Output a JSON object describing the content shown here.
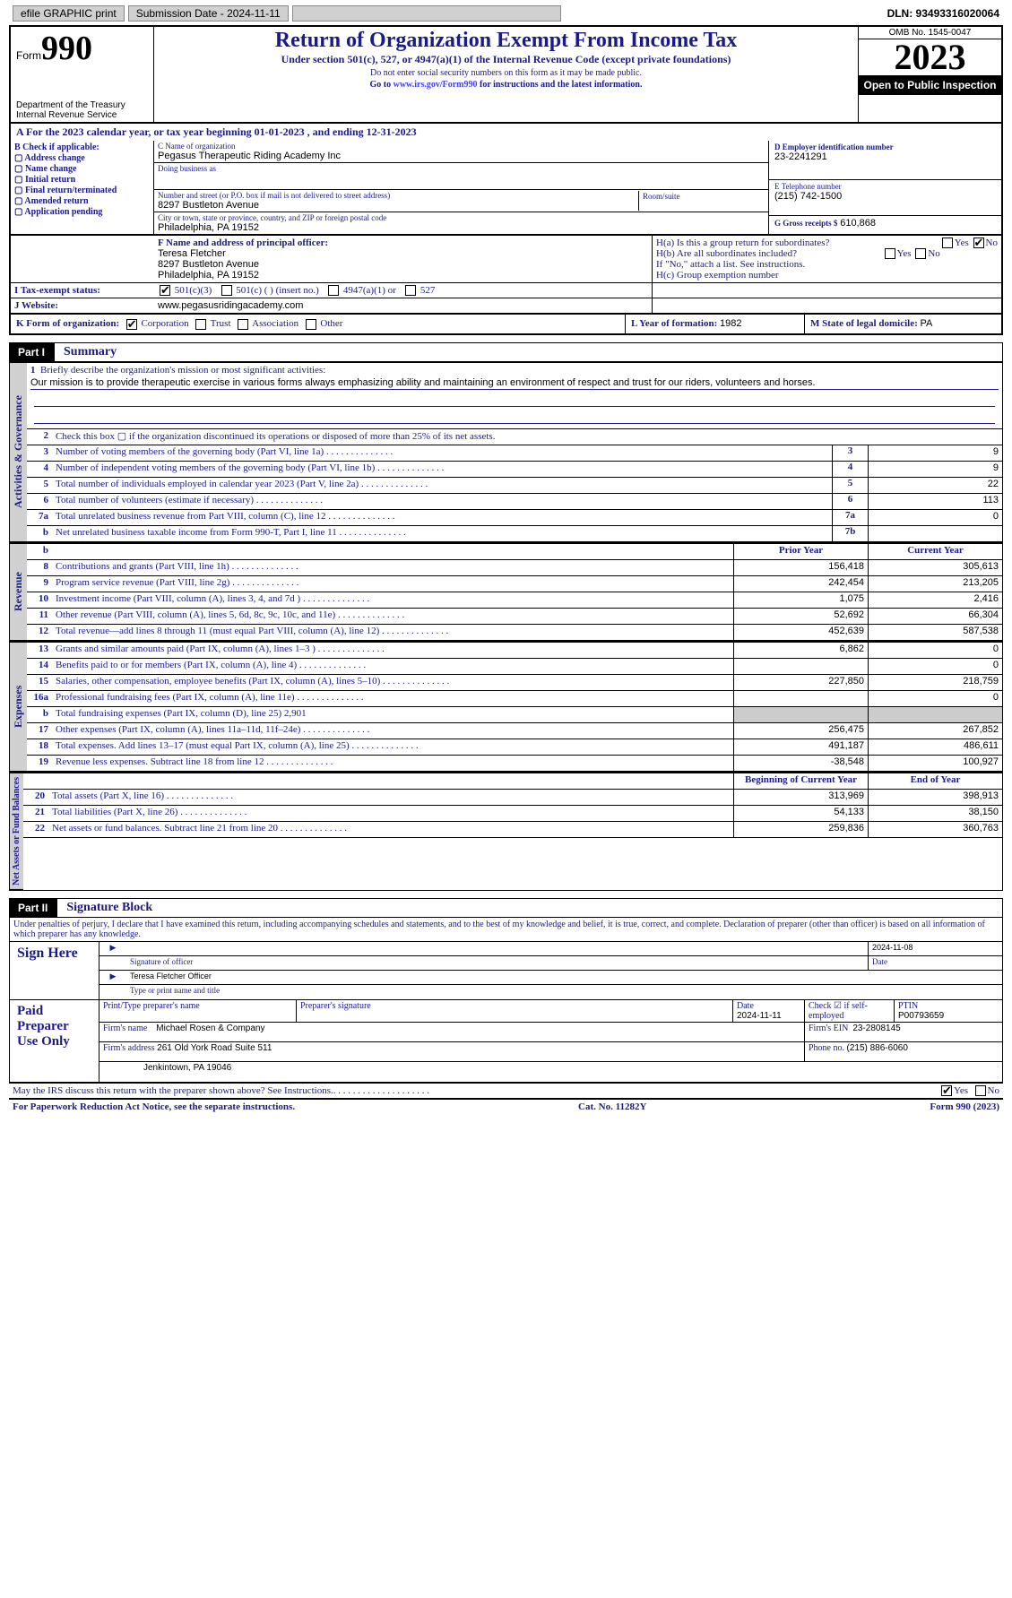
{
  "top_bar": {
    "efile": "efile GRAPHIC print",
    "submission": "Submission Date - 2024-11-11",
    "dln": "DLN: 93493316020064"
  },
  "header": {
    "form_label": "Form",
    "form_num": "990",
    "dept": "Department of the Treasury",
    "irs": "Internal Revenue Service",
    "title": "Return of Organization Exempt From Income Tax",
    "sub": "Under section 501(c), 527, or 4947(a)(1) of the Internal Revenue Code (except private foundations)",
    "ssn": "Do not enter social security numbers on this form as it may be made public.",
    "goto": "Go to www.irs.gov/Form990 for instructions and the latest information.",
    "goto_link": "www.irs.gov/Form990",
    "omb": "OMB No. 1545-0047",
    "year": "2023",
    "inspection": "Open to Public Inspection"
  },
  "row_a": "A For the 2023 calendar year, or tax year beginning 01-01-2023    , and ending 12-31-2023",
  "box_b": {
    "label": "B Check if applicable:",
    "items": [
      "Address change",
      "Name change",
      "Initial return",
      "Final return/terminated",
      "Amended return",
      "Application pending"
    ]
  },
  "box_c": {
    "name_lbl": "C Name of organization",
    "name": "Pegasus Therapeutic Riding Academy Inc",
    "dba_lbl": "Doing business as",
    "street_lbl": "Number and street (or P.O. box if mail is not delivered to street address)",
    "street": "8297 Bustleton Avenue",
    "room_lbl": "Room/suite",
    "city_lbl": "City or town, state or province, country, and ZIP or foreign postal code",
    "city": "Philadelphia, PA  19152"
  },
  "box_d": {
    "ein_lbl": "D Employer identification number",
    "ein": "23-2241291",
    "phone_lbl": "E Telephone number",
    "phone": "(215) 742-1500",
    "gross_lbl": "G Gross receipts $",
    "gross": "610,868"
  },
  "box_f": {
    "lbl": "F Name and address of principal officer:",
    "name": "Teresa Fletcher",
    "addr1": "8297 Bustleton Avenue",
    "addr2": "Philadelphia, PA  19152"
  },
  "box_h": {
    "ha": "H(a)  Is this a group return for subordinates?",
    "hb": "H(b)  Are all subordinates included?",
    "hb_note": "If \"No,\" attach a list. See instructions.",
    "hc": "H(c)  Group exemption number"
  },
  "tax_status": {
    "lbl": "I  Tax-exempt status:",
    "opts": [
      "501(c)(3)",
      "501(c) (  ) (insert no.)",
      "4947(a)(1) or",
      "527"
    ]
  },
  "website": {
    "lbl": "J  Website:",
    "val": "www.pegasusridingacademy.com"
  },
  "k_form": {
    "lbl": "K Form of organization:",
    "opts": [
      "Corporation",
      "Trust",
      "Association",
      "Other"
    ],
    "year_lbl": "L Year of formation:",
    "year": "1982",
    "state_lbl": "M State of legal domicile:",
    "state": "PA"
  },
  "part1": {
    "num": "Part I",
    "title": "Summary"
  },
  "governance": {
    "vtab": "Activities & Governance",
    "line1_lbl": "Briefly describe the organization's mission or most significant activities:",
    "line1": "Our mission is to provide therapeutic exercise in various forms always emphasizing ability and maintaining an environment of respect and trust for our riders, volunteers and horses.",
    "line2": "Check this box  ▢  if the organization discontinued its operations or disposed of more than 25% of its net assets.",
    "rows": [
      {
        "n": "3",
        "d": "Number of voting members of the governing body (Part VI, line 1a)",
        "b": "3",
        "v": "9"
      },
      {
        "n": "4",
        "d": "Number of independent voting members of the governing body (Part VI, line 1b)",
        "b": "4",
        "v": "9"
      },
      {
        "n": "5",
        "d": "Total number of individuals employed in calendar year 2023 (Part V, line 2a)",
        "b": "5",
        "v": "22"
      },
      {
        "n": "6",
        "d": "Total number of volunteers (estimate if necessary)",
        "b": "6",
        "v": "113"
      },
      {
        "n": "7a",
        "d": "Total unrelated business revenue from Part VIII, column (C), line 12",
        "b": "7a",
        "v": "0"
      },
      {
        "n": "b",
        "d": "Net unrelated business taxable income from Form 990-T, Part I, line 11",
        "b": "7b",
        "v": ""
      }
    ]
  },
  "revenue": {
    "vtab": "Revenue",
    "h_prior": "Prior Year",
    "h_curr": "Current Year",
    "rows": [
      {
        "n": "8",
        "d": "Contributions and grants (Part VIII, line 1h)",
        "p": "156,418",
        "c": "305,613"
      },
      {
        "n": "9",
        "d": "Program service revenue (Part VIII, line 2g)",
        "p": "242,454",
        "c": "213,205"
      },
      {
        "n": "10",
        "d": "Investment income (Part VIII, column (A), lines 3, 4, and 7d )",
        "p": "1,075",
        "c": "2,416"
      },
      {
        "n": "11",
        "d": "Other revenue (Part VIII, column (A), lines 5, 6d, 8c, 9c, 10c, and 11e)",
        "p": "52,692",
        "c": "66,304"
      },
      {
        "n": "12",
        "d": "Total revenue—add lines 8 through 11 (must equal Part VIII, column (A), line 12)",
        "p": "452,639",
        "c": "587,538"
      }
    ]
  },
  "expenses": {
    "vtab": "Expenses",
    "rows": [
      {
        "n": "13",
        "d": "Grants and similar amounts paid (Part IX, column (A), lines 1–3 )",
        "p": "6,862",
        "c": "0"
      },
      {
        "n": "14",
        "d": "Benefits paid to or for members (Part IX, column (A), line 4)",
        "p": "",
        "c": "0"
      },
      {
        "n": "15",
        "d": "Salaries, other compensation, employee benefits (Part IX, column (A), lines 5–10)",
        "p": "227,850",
        "c": "218,759"
      },
      {
        "n": "16a",
        "d": "Professional fundraising fees (Part IX, column (A), line 11e)",
        "p": "",
        "c": "0"
      },
      {
        "n": "b",
        "d": "Total fundraising expenses (Part IX, column (D), line 25) 2,901",
        "shaded": true
      },
      {
        "n": "17",
        "d": "Other expenses (Part IX, column (A), lines 11a–11d, 11f–24e)",
        "p": "256,475",
        "c": "267,852"
      },
      {
        "n": "18",
        "d": "Total expenses. Add lines 13–17 (must equal Part IX, column (A), line 25)",
        "p": "491,187",
        "c": "486,611"
      },
      {
        "n": "19",
        "d": "Revenue less expenses. Subtract line 18 from line 12",
        "p": "-38,548",
        "c": "100,927"
      }
    ]
  },
  "netassets": {
    "vtab": "Net Assets or Fund Balances",
    "h_prior": "Beginning of Current Year",
    "h_curr": "End of Year",
    "rows": [
      {
        "n": "20",
        "d": "Total assets (Part X, line 16)",
        "p": "313,969",
        "c": "398,913"
      },
      {
        "n": "21",
        "d": "Total liabilities (Part X, line 26)",
        "p": "54,133",
        "c": "38,150"
      },
      {
        "n": "22",
        "d": "Net assets or fund balances. Subtract line 21 from line 20",
        "p": "259,836",
        "c": "360,763"
      }
    ]
  },
  "part2": {
    "num": "Part II",
    "title": "Signature Block"
  },
  "sig": {
    "perjury": "Under penalties of perjury, I declare that I have examined this return, including accompanying schedules and statements, and to the best of my knowledge and belief, it is true, correct, and complete. Declaration of preparer (other than officer) is based on all information of which preparer has any knowledge.",
    "sign_here": "Sign Here",
    "date1": "2024-11-08",
    "sig_officer": "Signature of officer",
    "date_lbl": "Date",
    "officer": "Teresa Fletcher  Officer",
    "type_lbl": "Type or print name and title",
    "paid": "Paid Preparer Use Only",
    "prep_name_lbl": "Print/Type preparer's name",
    "prep_sig_lbl": "Preparer's signature",
    "prep_date_lbl": "Date",
    "prep_date": "2024-11-11",
    "check_lbl": "Check ☑ if self-employed",
    "ptin_lbl": "PTIN",
    "ptin": "P00793659",
    "firm_name_lbl": "Firm's name",
    "firm_name": "Michael Rosen & Company",
    "firm_ein_lbl": "Firm's EIN",
    "firm_ein": "23-2808145",
    "firm_addr_lbl": "Firm's address",
    "firm_addr1": "261 Old York Road Suite 511",
    "firm_addr2": "Jenkintown, PA  19046",
    "firm_phone_lbl": "Phone no.",
    "firm_phone": "(215) 886-6060",
    "discuss": "May the IRS discuss this return with the preparer shown above? See Instructions.",
    "footer_left": "For Paperwork Reduction Act Notice, see the separate instructions.",
    "cat": "Cat. No. 11282Y",
    "footer_right": "Form 990 (2023)"
  },
  "colors": {
    "navy": "#1a1a8a",
    "gray": "#d0d0d0"
  }
}
